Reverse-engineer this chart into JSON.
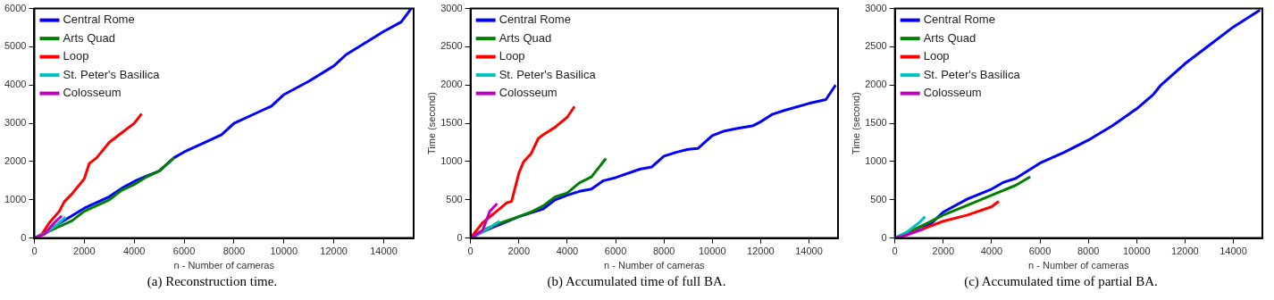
{
  "chart_data": [
    {
      "type": "line",
      "xlabel": "n - Number of cameras",
      "annotations": [
        "(a)  Reconstruction time."
      ],
      "xlim": [
        0,
        15200
      ],
      "ylim": [
        0,
        6000
      ],
      "xticks": [
        0,
        2000,
        4000,
        6000,
        8000,
        10000,
        12000,
        14000
      ],
      "yticks": [
        0,
        1000,
        2000,
        3000,
        4000,
        5000,
        6000
      ],
      "legend": "top left",
      "series": [
        {
          "name": "Central Rome",
          "color": "#0000ff",
          "x": [
            0,
            500,
            1000,
            2000,
            3000,
            3500,
            4000,
            4500,
            5000,
            5600,
            6000,
            7000,
            7500,
            8000,
            9000,
            9500,
            10000,
            11000,
            12000,
            12500,
            13000,
            14000,
            14700,
            15100
          ],
          "values": [
            0,
            150,
            380,
            780,
            1080,
            1300,
            1480,
            1620,
            1750,
            2100,
            2250,
            2550,
            2700,
            3000,
            3300,
            3450,
            3750,
            4100,
            4500,
            4800,
            5000,
            5400,
            5650,
            6000
          ]
        },
        {
          "name": "Arts Quad",
          "color": "#008000",
          "x": [
            0,
            500,
            1000,
            1500,
            2000,
            3000,
            3500,
            4000,
            4500,
            5000,
            5600
          ],
          "values": [
            0,
            150,
            300,
            450,
            700,
            1000,
            1250,
            1400,
            1600,
            1750,
            2100
          ]
        },
        {
          "name": "Loop",
          "color": "#ff0000",
          "x": [
            0,
            300,
            600,
            1000,
            1200,
            1500,
            2000,
            2200,
            2500,
            3000,
            3500,
            4000,
            4300
          ],
          "values": [
            0,
            100,
            400,
            700,
            950,
            1150,
            1550,
            1950,
            2100,
            2500,
            2750,
            3000,
            3250
          ]
        },
        {
          "name": "St. Peter's Basilica",
          "color": "#00c0c0",
          "x": [
            0,
            500,
            1000,
            1250
          ],
          "values": [
            0,
            150,
            400,
            550
          ]
        },
        {
          "name": "Colosseum",
          "color": "#c000c0",
          "x": [
            0,
            400,
            800,
            1100
          ],
          "values": [
            0,
            100,
            400,
            580
          ]
        }
      ]
    },
    {
      "type": "line",
      "xlabel": "n - Number of cameras",
      "ylabel": "Time (second)",
      "annotations": [
        "(b)  Accumulated time of full BA."
      ],
      "xlim": [
        0,
        15200
      ],
      "ylim": [
        0,
        3000
      ],
      "xticks": [
        0,
        2000,
        4000,
        6000,
        8000,
        10000,
        12000,
        14000
      ],
      "yticks": [
        0,
        500,
        1000,
        1500,
        2000,
        2500,
        3000
      ],
      "legend": "top left",
      "series": [
        {
          "name": "Central Rome",
          "color": "#0000ff",
          "x": [
            0,
            500,
            1000,
            2000,
            2500,
            3000,
            3500,
            4000,
            4500,
            5000,
            5500,
            6000,
            7000,
            7500,
            8000,
            8500,
            9000,
            9400,
            10000,
            10500,
            11000,
            11700,
            12000,
            12500,
            13000,
            14000,
            14700,
            15100
          ],
          "values": [
            0,
            80,
            150,
            280,
            330,
            380,
            500,
            560,
            610,
            640,
            750,
            790,
            900,
            930,
            1070,
            1120,
            1160,
            1170,
            1340,
            1400,
            1430,
            1470,
            1520,
            1620,
            1670,
            1760,
            1810,
            2000
          ]
        },
        {
          "name": "Arts Quad",
          "color": "#008000",
          "x": [
            0,
            500,
            1000,
            2000,
            2500,
            3000,
            3500,
            4000,
            4500,
            5000,
            5600
          ],
          "values": [
            0,
            100,
            170,
            280,
            340,
            420,
            540,
            590,
            720,
            800,
            1040
          ]
        },
        {
          "name": "Loop",
          "color": "#ff0000",
          "x": [
            0,
            500,
            1000,
            1500,
            1700,
            2000,
            2200,
            2500,
            2800,
            3000,
            3500,
            4000,
            4300
          ],
          "values": [
            0,
            200,
            330,
            460,
            480,
            850,
            1000,
            1100,
            1300,
            1350,
            1450,
            1580,
            1720
          ]
        },
        {
          "name": "St. Peter's Basilica",
          "color": "#00c0c0",
          "x": [
            0,
            500,
            1200
          ],
          "values": [
            0,
            80,
            220
          ]
        },
        {
          "name": "Colosseum",
          "color": "#c000c0",
          "x": [
            0,
            500,
            800,
            1100
          ],
          "values": [
            0,
            100,
            350,
            450
          ]
        }
      ]
    },
    {
      "type": "line",
      "xlabel": "n - Number of cameras",
      "ylabel": "Time (second)",
      "annotations": [
        "(c)  Accumulated time of partial BA."
      ],
      "xlim": [
        0,
        15200
      ],
      "ylim": [
        0,
        3000
      ],
      "xticks": [
        0,
        2000,
        4000,
        6000,
        8000,
        10000,
        12000,
        14000
      ],
      "yticks": [
        0,
        500,
        1000,
        1500,
        2000,
        2500,
        3000
      ],
      "legend": "top left",
      "series": [
        {
          "name": "Central Rome",
          "color": "#0000ff",
          "x": [
            0,
            1000,
            1500,
            2000,
            3000,
            4000,
            4500,
            5000,
            6000,
            7000,
            8000,
            9000,
            10000,
            10700,
            11000,
            12000,
            13000,
            14000,
            15100
          ],
          "values": [
            0,
            140,
            190,
            340,
            510,
            640,
            730,
            780,
            980,
            1120,
            1280,
            1470,
            1690,
            1880,
            2000,
            2280,
            2520,
            2760,
            2980
          ]
        },
        {
          "name": "Arts Quad",
          "color": "#008000",
          "x": [
            0,
            1000,
            2000,
            3000,
            4000,
            5000,
            5600
          ],
          "values": [
            0,
            140,
            300,
            430,
            560,
            690,
            800
          ]
        },
        {
          "name": "Loop",
          "color": "#ff0000",
          "x": [
            0,
            1000,
            2000,
            3000,
            4000,
            4300
          ],
          "values": [
            0,
            100,
            220,
            300,
            410,
            480
          ]
        },
        {
          "name": "St. Peter's Basilica",
          "color": "#00c0c0",
          "x": [
            0,
            500,
            1000,
            1250
          ],
          "values": [
            0,
            80,
            200,
            280
          ]
        },
        {
          "name": "Colosseum",
          "color": "#c000c0",
          "x": [
            0,
            500,
            1000,
            1200
          ],
          "values": [
            0,
            40,
            100,
            120
          ]
        }
      ]
    }
  ]
}
